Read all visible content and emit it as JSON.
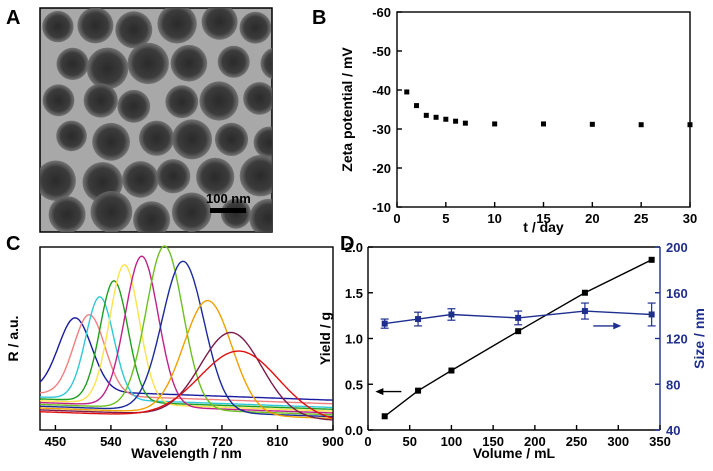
{
  "panel_labels": {
    "a": "A",
    "b": "B",
    "c": "C",
    "d": "D"
  },
  "micrograph": {
    "scale_bar_label": "100 nm"
  },
  "chart_data": [
    {
      "panel": "B",
      "type": "scatter",
      "xlabel": "t / day",
      "ylabel": "Zeta potential / mV",
      "xlim": [
        0,
        30
      ],
      "ylim": [
        -10,
        -60
      ],
      "xticks": [
        0,
        5,
        10,
        15,
        20,
        25,
        30
      ],
      "yticks": [
        -10,
        -20,
        -30,
        -40,
        -50,
        -60
      ],
      "x": [
        1,
        2,
        3,
        4,
        5,
        6,
        7,
        10,
        15,
        20,
        25,
        30
      ],
      "y": [
        -39.5,
        -36,
        -33.5,
        -33,
        -32.5,
        -32,
        -31.5,
        -31.3,
        -31.3,
        -31.2,
        -31.1,
        -31.1
      ]
    },
    {
      "panel": "C",
      "type": "line",
      "xlabel": "Wavelength / nm",
      "ylabel": "R / a.u.",
      "xlim": [
        425,
        900
      ],
      "xticks": [
        450,
        540,
        630,
        720,
        810,
        900
      ],
      "series": [
        {
          "name": "s1",
          "color": "#1a1aa0",
          "peak": 482,
          "height": 0.4,
          "width": 38,
          "base": 0.22
        },
        {
          "name": "s2",
          "color": "#f08080",
          "peak": 505,
          "height": 0.44,
          "width": 36,
          "base": 0.2
        },
        {
          "name": "s3",
          "color": "#30c8d8",
          "peak": 522,
          "height": 0.56,
          "width": 32,
          "base": 0.18
        },
        {
          "name": "s4",
          "color": "#1f9f1f",
          "peak": 545,
          "height": 0.66,
          "width": 32,
          "base": 0.17
        },
        {
          "name": "s5",
          "color": "#ffe24a",
          "peak": 562,
          "height": 0.76,
          "width": 34,
          "base": 0.16
        },
        {
          "name": "s6",
          "color": "#c0208a",
          "peak": 590,
          "height": 0.82,
          "width": 38,
          "base": 0.15
        },
        {
          "name": "s7",
          "color": "#6cc020",
          "peak": 627,
          "height": 0.89,
          "width": 42,
          "base": 0.14
        },
        {
          "name": "s8",
          "color": "#1a2b9a",
          "peak": 657,
          "height": 0.82,
          "width": 48,
          "base": 0.13
        },
        {
          "name": "s9",
          "color": "#f0a000",
          "peak": 697,
          "height": 0.62,
          "width": 55,
          "base": 0.12
        },
        {
          "name": "s10",
          "color": "#7a1b4a",
          "peak": 735,
          "height": 0.46,
          "width": 70,
          "base": 0.11
        },
        {
          "name": "s11",
          "color": "#e01010",
          "peak": 748,
          "height": 0.37,
          "width": 90,
          "base": 0.1
        }
      ]
    },
    {
      "panel": "D",
      "type": "line",
      "xlabel": "Volume / mL",
      "ylabel": "Yield / g",
      "y2label": "Size / nm",
      "xlim": [
        0,
        350
      ],
      "ylim": [
        0,
        2.0
      ],
      "y2lim": [
        40,
        200
      ],
      "xticks": [
        0,
        50,
        100,
        150,
        200,
        250,
        300,
        350
      ],
      "yticks": [
        0.0,
        0.5,
        1.0,
        1.5,
        2.0
      ],
      "y2ticks": [
        40,
        80,
        120,
        160,
        200
      ],
      "series": [
        {
          "name": "Yield",
          "axis": "left",
          "color": "#000000",
          "x": [
            20,
            60,
            100,
            180,
            260,
            340
          ],
          "y": [
            0.15,
            0.43,
            0.65,
            1.08,
            1.5,
            1.86
          ]
        },
        {
          "name": "Size",
          "axis": "right",
          "color": "#1f2f8f",
          "x": [
            20,
            60,
            100,
            180,
            260,
            340
          ],
          "y": [
            133,
            137,
            141,
            138,
            144,
            141
          ],
          "err": [
            4,
            6,
            5,
            6,
            7,
            10
          ]
        }
      ]
    }
  ]
}
